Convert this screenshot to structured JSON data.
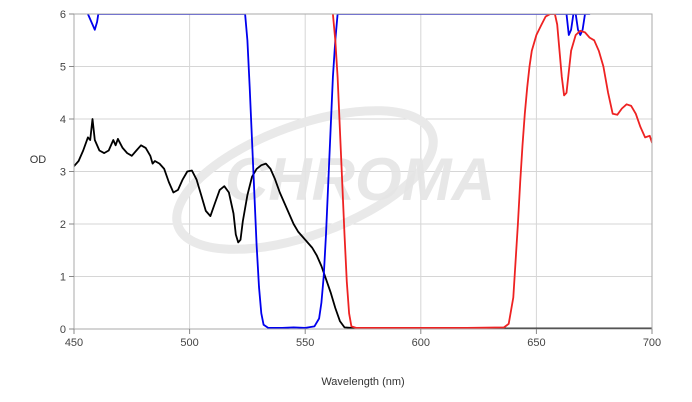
{
  "chart_data": {
    "type": "line",
    "title": "",
    "xlabel": "Wavelength (nm)",
    "ylabel": "OD",
    "xlim": [
      450,
      700
    ],
    "ylim": [
      0,
      6
    ],
    "xticks": [
      450,
      500,
      550,
      600,
      650,
      700
    ],
    "yticks": [
      0,
      1,
      2,
      3,
      4,
      5,
      6
    ],
    "grid": true,
    "legend": "none",
    "watermark": "CHROMA",
    "series": [
      {
        "color": "#000000",
        "points": [
          [
            450,
            3.1
          ],
          [
            452,
            3.2
          ],
          [
            454,
            3.4
          ],
          [
            456,
            3.65
          ],
          [
            457,
            3.6
          ],
          [
            458,
            4.0
          ],
          [
            459,
            3.6
          ],
          [
            461,
            3.4
          ],
          [
            463,
            3.35
          ],
          [
            465,
            3.4
          ],
          [
            467,
            3.6
          ],
          [
            468,
            3.5
          ],
          [
            469,
            3.62
          ],
          [
            471,
            3.45
          ],
          [
            473,
            3.35
          ],
          [
            475,
            3.3
          ],
          [
            477,
            3.4
          ],
          [
            479,
            3.5
          ],
          [
            481,
            3.45
          ],
          [
            483,
            3.3
          ],
          [
            484,
            3.15
          ],
          [
            485,
            3.2
          ],
          [
            487,
            3.15
          ],
          [
            489,
            3.05
          ],
          [
            491,
            2.8
          ],
          [
            493,
            2.6
          ],
          [
            495,
            2.65
          ],
          [
            497,
            2.85
          ],
          [
            499,
            3.0
          ],
          [
            501,
            3.02
          ],
          [
            503,
            2.85
          ],
          [
            505,
            2.55
          ],
          [
            507,
            2.25
          ],
          [
            509,
            2.15
          ],
          [
            511,
            2.4
          ],
          [
            513,
            2.65
          ],
          [
            515,
            2.72
          ],
          [
            517,
            2.6
          ],
          [
            519,
            2.2
          ],
          [
            520,
            1.8
          ],
          [
            521,
            1.65
          ],
          [
            522,
            1.7
          ],
          [
            523,
            2.05
          ],
          [
            525,
            2.55
          ],
          [
            527,
            2.9
          ],
          [
            529,
            3.05
          ],
          [
            531,
            3.12
          ],
          [
            533,
            3.15
          ],
          [
            535,
            3.05
          ],
          [
            537,
            2.85
          ],
          [
            539,
            2.6
          ],
          [
            541,
            2.4
          ],
          [
            543,
            2.2
          ],
          [
            545,
            2.0
          ],
          [
            547,
            1.85
          ],
          [
            549,
            1.75
          ],
          [
            551,
            1.65
          ],
          [
            553,
            1.55
          ],
          [
            555,
            1.4
          ],
          [
            557,
            1.2
          ],
          [
            559,
            0.95
          ],
          [
            561,
            0.7
          ],
          [
            563,
            0.4
          ],
          [
            565,
            0.15
          ],
          [
            567,
            0.03
          ],
          [
            570,
            0.02
          ],
          [
            600,
            0.01
          ],
          [
            650,
            0.01
          ],
          [
            700,
            0.01
          ]
        ]
      },
      {
        "color": "#0000ee",
        "points": [
          [
            456,
            6.0
          ],
          [
            458,
            5.8
          ],
          [
            459,
            5.7
          ],
          [
            460,
            5.85
          ],
          [
            460.5,
            6.0
          ],
          [
            524,
            6.0
          ],
          [
            525,
            5.5
          ],
          [
            526,
            4.6
          ],
          [
            527,
            3.6
          ],
          [
            528,
            2.6
          ],
          [
            529,
            1.6
          ],
          [
            530,
            0.8
          ],
          [
            531,
            0.3
          ],
          [
            532,
            0.08
          ],
          [
            534,
            0.02
          ],
          [
            540,
            0.02
          ],
          [
            545,
            0.03
          ],
          [
            550,
            0.02
          ],
          [
            554,
            0.05
          ],
          [
            556,
            0.2
          ],
          [
            557,
            0.5
          ],
          [
            558,
            1.0
          ],
          [
            559,
            1.8
          ],
          [
            560,
            2.8
          ],
          [
            561,
            3.8
          ],
          [
            562,
            4.8
          ],
          [
            563,
            5.5
          ],
          [
            564,
            6.0
          ],
          [
            673,
            6.0
          ],
          [
            663,
            6.0
          ],
          [
            664,
            5.6
          ],
          [
            665,
            5.7
          ],
          [
            666,
            6.0
          ],
          [
            667,
            6.0
          ],
          [
            668,
            5.7
          ],
          [
            669,
            5.6
          ],
          [
            670,
            5.7
          ],
          [
            671,
            6.0
          ]
        ]
      },
      {
        "color": "#ee2222",
        "points": [
          [
            562,
            6.0
          ],
          [
            563,
            5.5
          ],
          [
            564,
            4.8
          ],
          [
            565,
            3.8
          ],
          [
            566,
            2.8
          ],
          [
            567,
            1.8
          ],
          [
            568,
            0.9
          ],
          [
            569,
            0.3
          ],
          [
            570,
            0.05
          ],
          [
            572,
            0.02
          ],
          [
            600,
            0.02
          ],
          [
            620,
            0.02
          ],
          [
            636,
            0.03
          ],
          [
            638,
            0.1
          ],
          [
            640,
            0.6
          ],
          [
            641,
            1.3
          ],
          [
            642,
            2.0
          ],
          [
            643,
            2.8
          ],
          [
            644,
            3.5
          ],
          [
            645,
            4.1
          ],
          [
            646,
            4.6
          ],
          [
            647,
            5.0
          ],
          [
            648,
            5.3
          ],
          [
            650,
            5.6
          ],
          [
            652,
            5.78
          ],
          [
            654,
            5.95
          ],
          [
            656,
            6.0
          ],
          [
            658,
            6.0
          ],
          [
            659,
            5.8
          ],
          [
            660,
            5.3
          ],
          [
            661,
            4.8
          ],
          [
            662,
            4.45
          ],
          [
            663,
            4.5
          ],
          [
            664,
            4.9
          ],
          [
            665,
            5.3
          ],
          [
            667,
            5.6
          ],
          [
            669,
            5.68
          ],
          [
            671,
            5.65
          ],
          [
            673,
            5.55
          ],
          [
            675,
            5.5
          ],
          [
            677,
            5.3
          ],
          [
            679,
            5.0
          ],
          [
            681,
            4.5
          ],
          [
            683,
            4.1
          ],
          [
            685,
            4.08
          ],
          [
            687,
            4.2
          ],
          [
            689,
            4.28
          ],
          [
            691,
            4.25
          ],
          [
            693,
            4.1
          ],
          [
            695,
            3.85
          ],
          [
            697,
            3.65
          ],
          [
            699,
            3.68
          ],
          [
            700,
            3.55
          ]
        ]
      }
    ]
  }
}
